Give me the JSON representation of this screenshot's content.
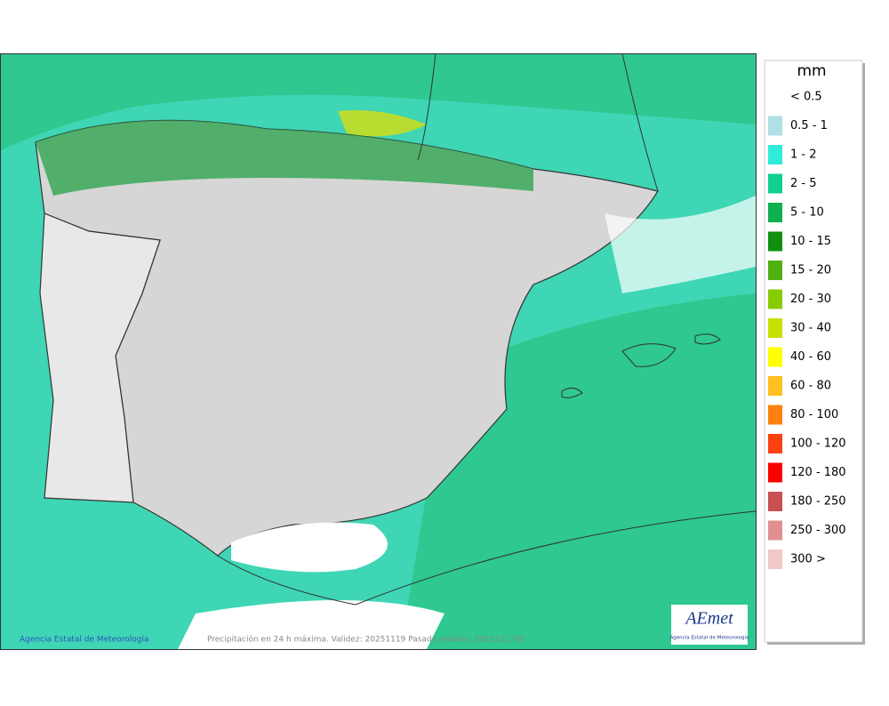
{
  "map": {
    "caption": "Precipitación en 24 h máxima. Validez: 20251119 Pasada modelo: 2025111700",
    "credit": "Agencia Estatal de Meteorología",
    "logo": {
      "name": "AEmet",
      "subtitle": "Agencia Estatal de Meteorología"
    }
  },
  "legend": {
    "title": "mm",
    "items": [
      {
        "label": "< 0.5"
      },
      {
        "label": "0.5 - 1",
        "color": "#b0e0e6"
      },
      {
        "label": "1 - 2",
        "color": "#30ecd8"
      },
      {
        "label": "2 - 5",
        "color": "#10d090"
      },
      {
        "label": "5 - 10",
        "color": "#10b050"
      },
      {
        "label": "10 - 15",
        "color": "#109010"
      },
      {
        "label": "15 - 20",
        "color": "#50b010"
      },
      {
        "label": "20 - 30",
        "color": "#88cc00"
      },
      {
        "label": "30 - 40",
        "color": "#c8e000"
      },
      {
        "label": "40 - 60",
        "color": "#ffff00"
      },
      {
        "label": "60 - 80",
        "color": "#ffc020"
      },
      {
        "label": "80 - 100",
        "color": "#ff8010"
      },
      {
        "label": "100 - 120",
        "color": "#ff4010"
      },
      {
        "label": "120 - 180",
        "color": "#ff0000"
      },
      {
        "label": "180 - 250",
        "color": "#c85050"
      },
      {
        "label": "250 - 300",
        "color": "#e09090"
      },
      {
        "label": "300 >",
        "color": "#f0c8c8"
      }
    ]
  }
}
